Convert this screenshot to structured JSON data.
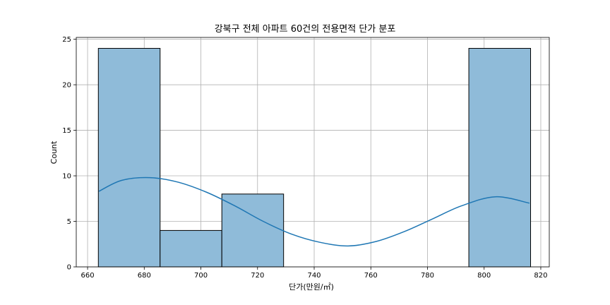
{
  "chart_data": {
    "type": "bar",
    "subtype": "histogram-with-kde",
    "title": "강북구 전체 아파트 60건의 전용면적 단가 분포",
    "xlabel": "단가(만원/㎡)",
    "ylabel": "Count",
    "xlim": [
      656,
      823
    ],
    "ylim": [
      0,
      25.2
    ],
    "xticks": [
      660,
      680,
      700,
      720,
      740,
      760,
      780,
      800,
      820
    ],
    "yticks": [
      0,
      5,
      10,
      15,
      20,
      25
    ],
    "grid": true,
    "bins": [
      {
        "start": 663.8,
        "end": 685.6,
        "count": 24
      },
      {
        "start": 685.6,
        "end": 707.4,
        "count": 4
      },
      {
        "start": 707.4,
        "end": 729.2,
        "count": 8
      },
      {
        "start": 729.2,
        "end": 751.0,
        "count": 0
      },
      {
        "start": 751.0,
        "end": 772.8,
        "count": 0
      },
      {
        "start": 772.8,
        "end": 794.6,
        "count": 0
      },
      {
        "start": 794.6,
        "end": 816.4,
        "count": 24
      }
    ],
    "kde": {
      "x": [
        664,
        672,
        682,
        692,
        702,
        712,
        722,
        732,
        742,
        752,
        762,
        772,
        782,
        792,
        804,
        816
      ],
      "y": [
        8.3,
        9.5,
        9.8,
        9.3,
        8.2,
        6.7,
        5.0,
        3.6,
        2.7,
        2.3,
        2.8,
        3.9,
        5.3,
        6.7,
        7.7,
        7.0
      ]
    },
    "colors": {
      "bar_fill": "#8fbbd9",
      "bar_edge": "#000000",
      "kde_line": "#1f77b4",
      "grid": "#b0b0b0"
    }
  }
}
